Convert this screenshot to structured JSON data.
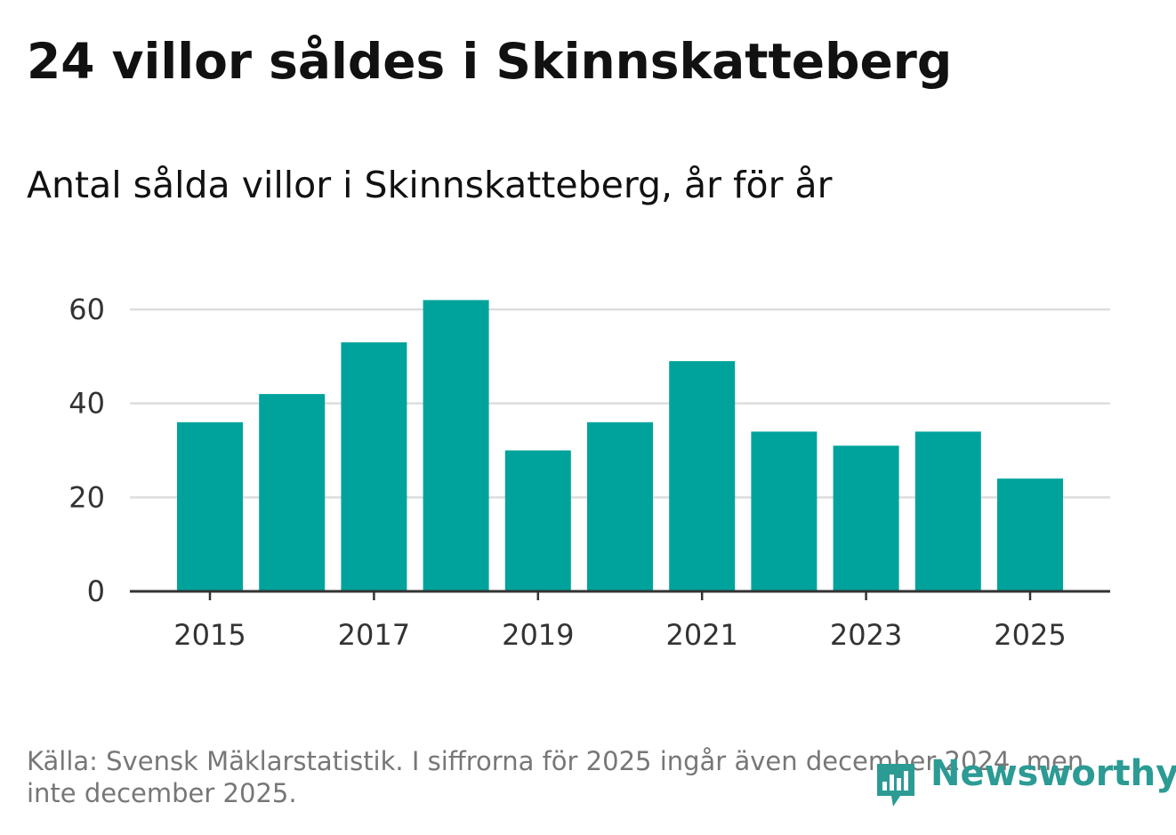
{
  "header": {
    "title": "24 villor såldes i Skinnskatteberg",
    "subtitle": "Antal sålda villor i Skinnskatteberg, år för år"
  },
  "chart_data": {
    "type": "bar",
    "title": "24 villor såldes i Skinnskatteberg",
    "subtitle": "Antal sålda villor i Skinnskatteberg, år för år",
    "categories": [
      "2015",
      "2016",
      "2017",
      "2018",
      "2019",
      "2020",
      "2021",
      "2022",
      "2023",
      "2024",
      "2025"
    ],
    "values": [
      36,
      42,
      53,
      62,
      30,
      36,
      49,
      34,
      31,
      34,
      24
    ],
    "xlabel": "",
    "ylabel": "",
    "ylim": [
      0,
      60
    ],
    "yticks": [
      "0",
      "20",
      "40",
      "60"
    ],
    "xticks": [
      "2015",
      "2017",
      "2019",
      "2021",
      "2023",
      "2025"
    ],
    "grid": true,
    "bar_color": "#00a39b",
    "gridline_color": "#dddddd",
    "axis_color": "#333333",
    "tick_label_color": "#333333"
  },
  "footer": {
    "source": "Källa: Svensk Mäklarstatistik. I siffrorna för 2025 ingår även december 2024, men inte december 2025.",
    "logo_text": "Newsworthy",
    "logo_icon": "newsworthy-chart-bubble-icon",
    "logo_color": "#2b9b94"
  }
}
